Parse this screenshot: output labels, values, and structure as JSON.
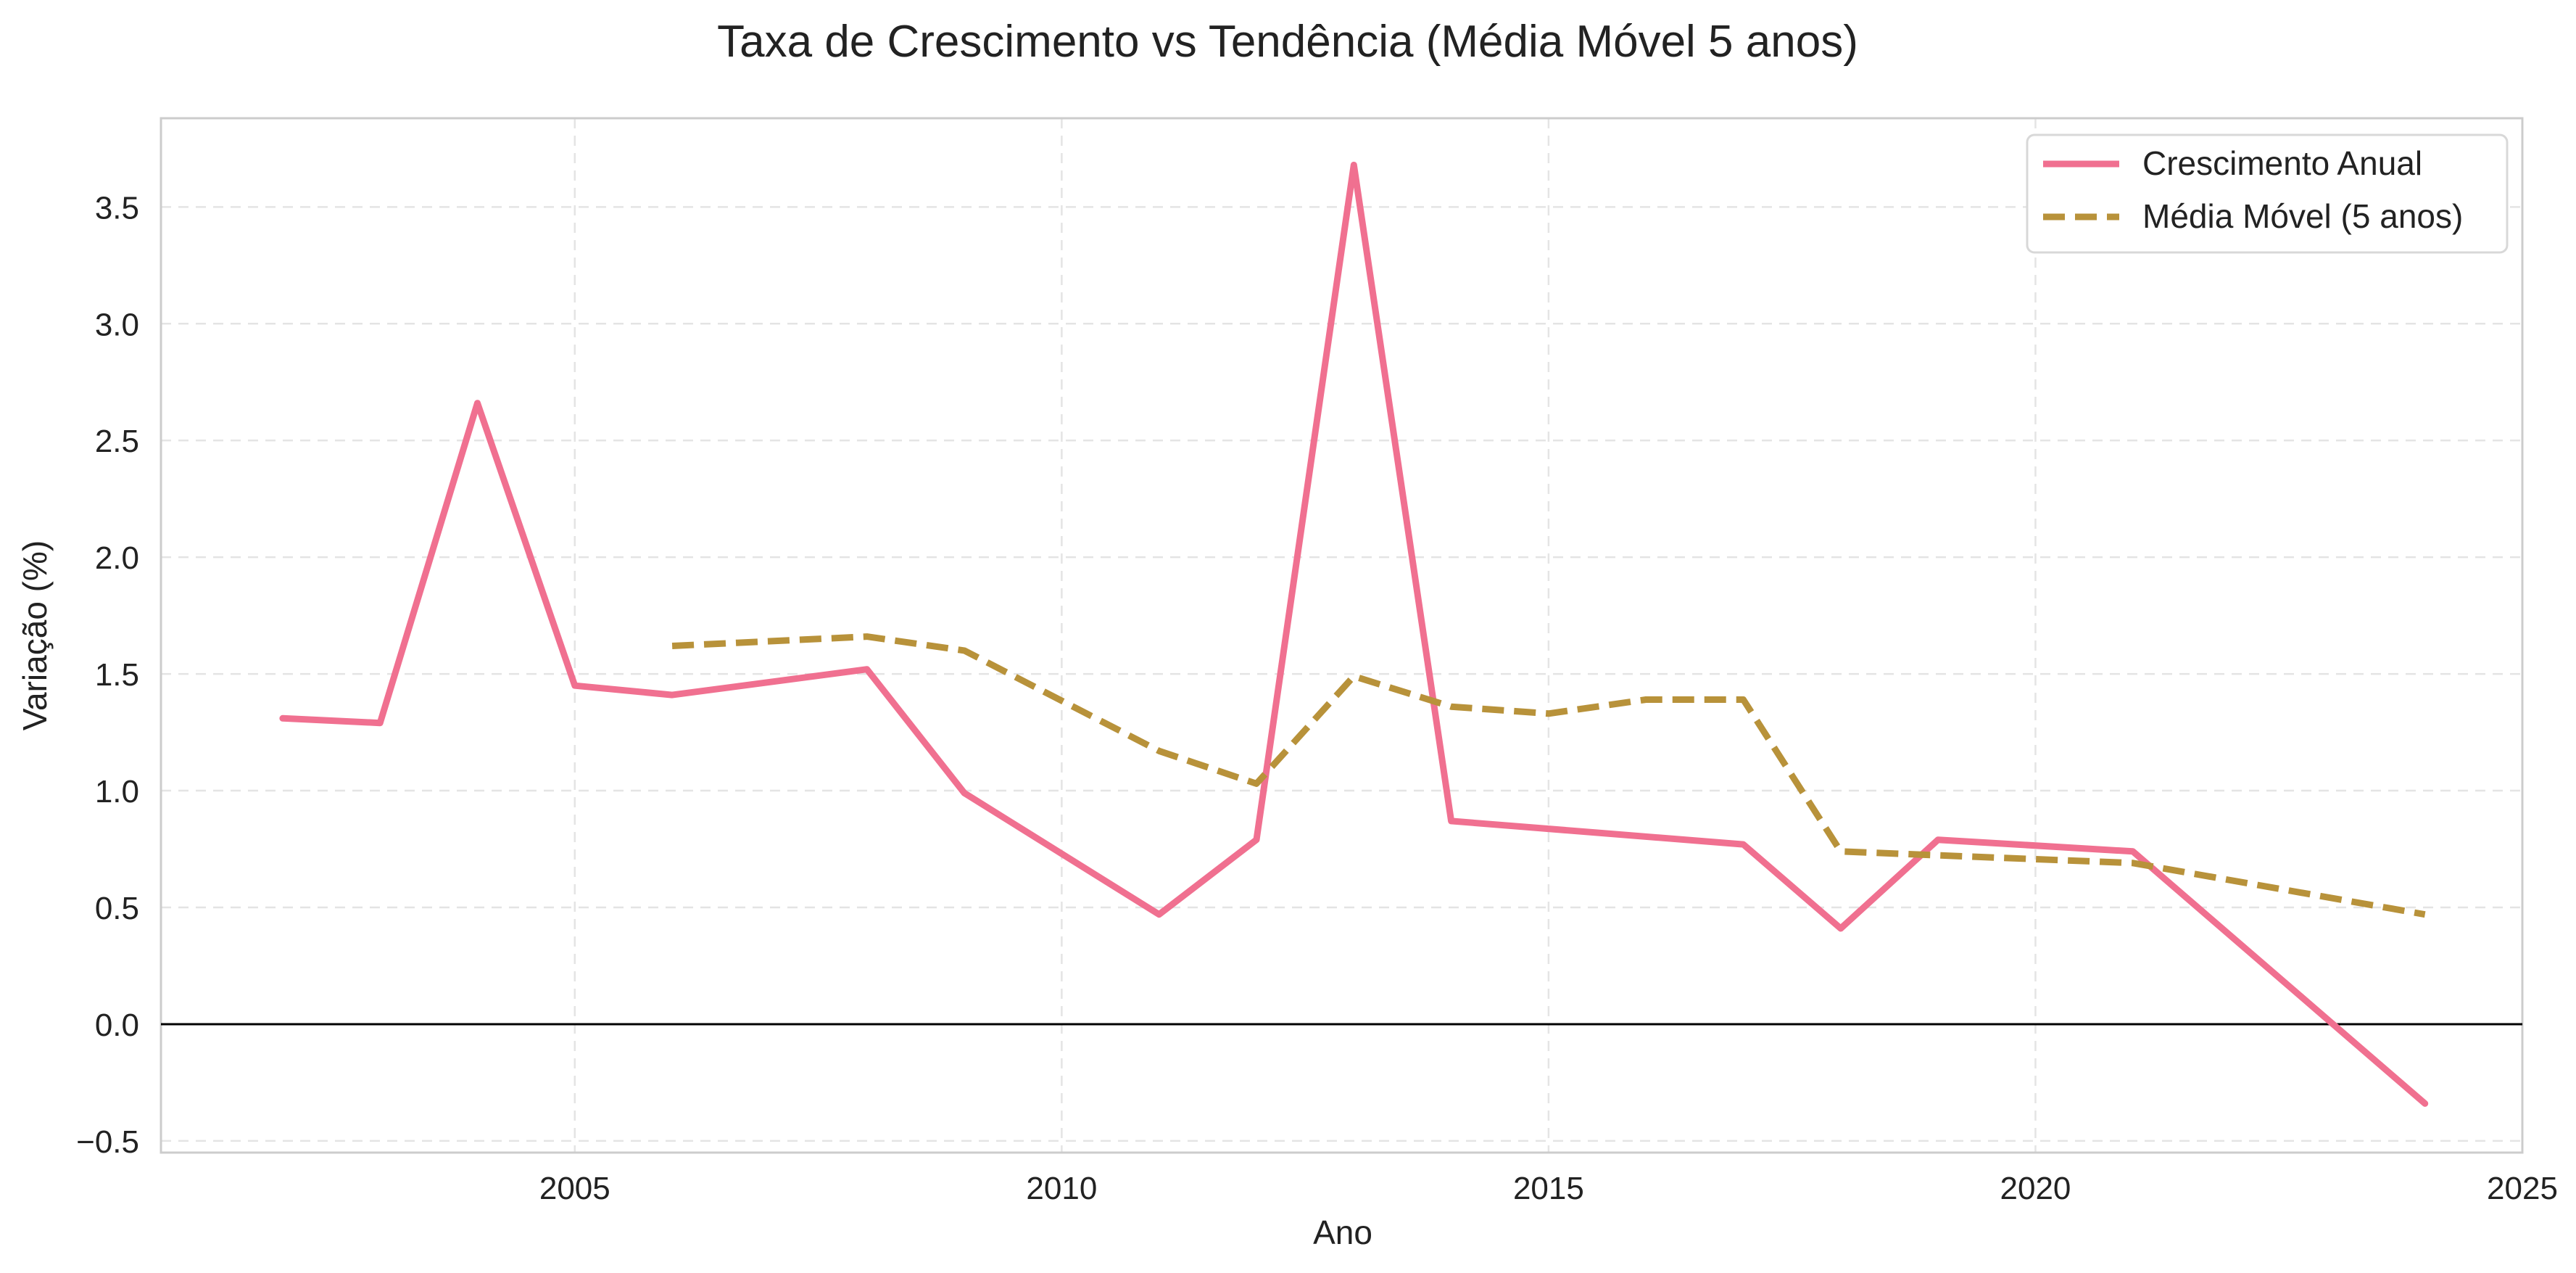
{
  "chart_data": {
    "type": "line",
    "title": "Taxa de Crescimento vs Tendência (Média Móvel 5 anos)",
    "xlabel": "Ano",
    "ylabel": "Variação (%)",
    "xlim": [
      2000.75,
      2025
    ],
    "ylim": [
      -0.55,
      3.88
    ],
    "xticks": [
      2005,
      2010,
      2015,
      2020,
      2025
    ],
    "yticks": [
      -0.5,
      0.0,
      0.5,
      1.0,
      1.5,
      2.0,
      2.5,
      3.0,
      3.5
    ],
    "ytick_labels": [
      "−0.5",
      "0.0",
      "0.5",
      "1.0",
      "1.5",
      "2.0",
      "2.5",
      "3.0",
      "3.5"
    ],
    "grid": true,
    "zero_line": true,
    "legend_position": "top-right",
    "series": [
      {
        "name": "Crescimento Anual",
        "color": "#f07090",
        "style": "solid",
        "x": [
          2002,
          2003,
          2004,
          2005,
          2006,
          2008,
          2009,
          2011,
          2012,
          2013,
          2014,
          2017,
          2018,
          2019,
          2021,
          2024
        ],
        "y": [
          1.31,
          1.29,
          2.66,
          1.45,
          1.41,
          1.52,
          0.99,
          0.47,
          0.79,
          3.68,
          0.87,
          0.77,
          0.41,
          0.79,
          0.74,
          -0.34
        ]
      },
      {
        "name": "Média Móvel (5 anos)",
        "color": "#b8923a",
        "style": "dashed",
        "x": [
          2006,
          2008,
          2009,
          2011,
          2012,
          2013,
          2014,
          2015,
          2016,
          2017,
          2018,
          2021,
          2024
        ],
        "y": [
          1.62,
          1.66,
          1.6,
          1.17,
          1.03,
          1.49,
          1.36,
          1.33,
          1.39,
          1.39,
          0.74,
          0.69,
          0.47
        ]
      }
    ]
  }
}
